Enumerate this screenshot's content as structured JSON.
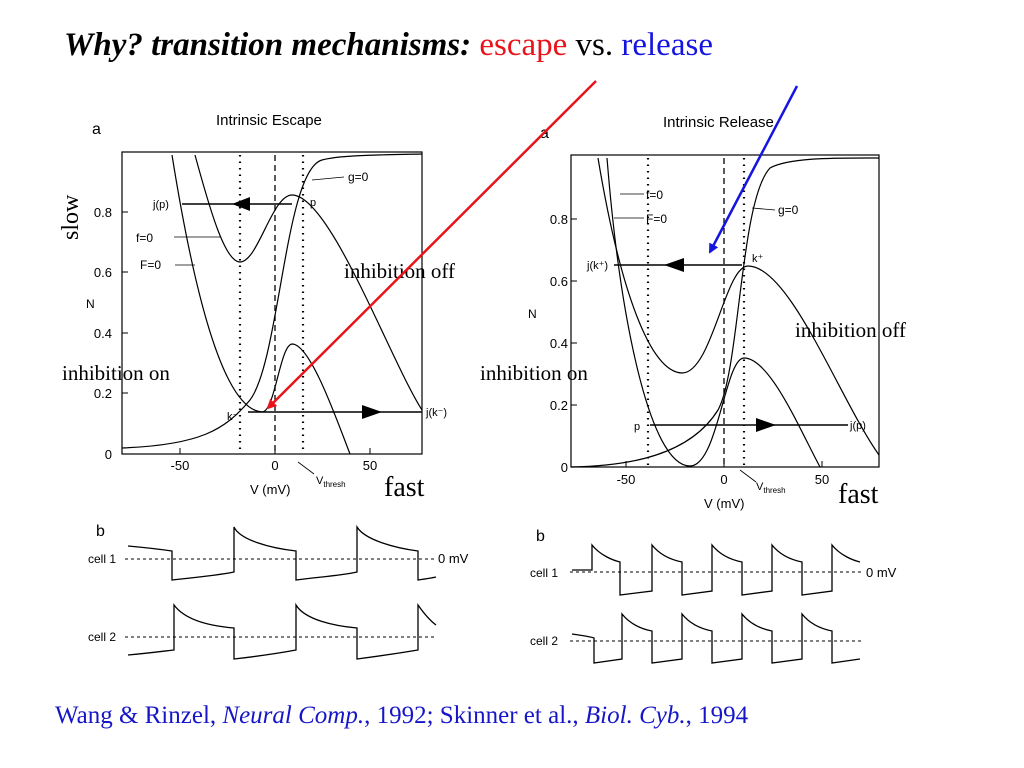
{
  "title": {
    "question": "Why?  transition mechanisms:",
    "escape": "escape",
    "vs": "vs.",
    "release": "release"
  },
  "labels": {
    "slow": "slow",
    "inhibition_off": "inhibition off",
    "inhibition_on": "inhibition on",
    "fast": "fast"
  },
  "panel_left": {
    "letter": "a",
    "heading": "Intrinsic Escape",
    "ylabel": "N",
    "xlabel": "V (mV)",
    "yticks": [
      "0",
      "0.2",
      "0.4",
      "0.6",
      "0.8"
    ],
    "xticks": [
      "-50",
      "0",
      "50"
    ],
    "g0": "g=0",
    "f0": "f=0",
    "F0": "F=0",
    "jp": "j(p)",
    "p": "p",
    "km": "k⁻",
    "jkm": "j(k⁻)",
    "vthresh": "V",
    "vthresh_sub": "thresh"
  },
  "panel_right": {
    "letter": "a",
    "heading": "Intrinsic Release",
    "ylabel": "N",
    "xlabel": "V (mV)",
    "yticks": [
      "0",
      "0.2",
      "0.4",
      "0.6",
      "0.8"
    ],
    "xticks": [
      "-50",
      "0",
      "50"
    ],
    "g0": "g=0",
    "f0": "f=0",
    "F0": "F=0",
    "jkp": "j(k⁺)",
    "kp": "k⁺",
    "p": "p",
    "jp": "j(p)",
    "vthresh": "V",
    "vthresh_sub": "thresh"
  },
  "trace_left": {
    "letter": "b",
    "cell1": "cell 1",
    "cell2": "cell 2",
    "zero": "0 mV"
  },
  "trace_right": {
    "letter": "b",
    "cell1": "cell 1",
    "cell2": "cell 2",
    "zero": "0 mV"
  },
  "citation": {
    "a1": "Wang & Rinzel, ",
    "j1": "Neural Comp.",
    "a2": ", 1992; Skinner et al., ",
    "j2": "Biol. Cyb.",
    "a3": ", 1994"
  },
  "colors": {
    "escape": "#e8141b",
    "release": "#1515e0"
  }
}
